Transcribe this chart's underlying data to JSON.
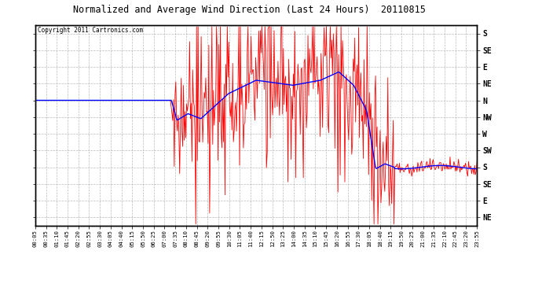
{
  "title": "Normalized and Average Wind Direction (Last 24 Hours)  20110815",
  "copyright": "Copyright 2011 Cartronics.com",
  "background_color": "#ffffff",
  "plot_bg_color": "#ffffff",
  "grid_color": "#aaaaaa",
  "y_labels_top_to_bottom": [
    "S",
    "SE",
    "E",
    "NE",
    "N",
    "NW",
    "W",
    "SW",
    "S",
    "SE",
    "E",
    "NE"
  ],
  "y_ticks": [
    11,
    10,
    9,
    8,
    7,
    6,
    5,
    4,
    3,
    2,
    1,
    0
  ],
  "y_range": [
    -0.5,
    11.5
  ],
  "time_labels": [
    "00:05",
    "00:35",
    "01:10",
    "01:45",
    "02:20",
    "02:55",
    "03:30",
    "04:05",
    "04:40",
    "05:15",
    "05:50",
    "06:25",
    "07:00",
    "07:35",
    "08:10",
    "08:45",
    "09:20",
    "09:55",
    "10:30",
    "11:05",
    "11:40",
    "12:15",
    "12:50",
    "13:25",
    "14:00",
    "14:35",
    "15:10",
    "15:45",
    "16:20",
    "16:55",
    "17:30",
    "18:05",
    "18:40",
    "19:15",
    "19:50",
    "20:25",
    "21:00",
    "21:35",
    "22:10",
    "22:45",
    "23:20",
    "23:55"
  ],
  "blue_line_color": "#0000ff",
  "red_line_color": "#ff0000",
  "n_points": 576,
  "seed": 17
}
